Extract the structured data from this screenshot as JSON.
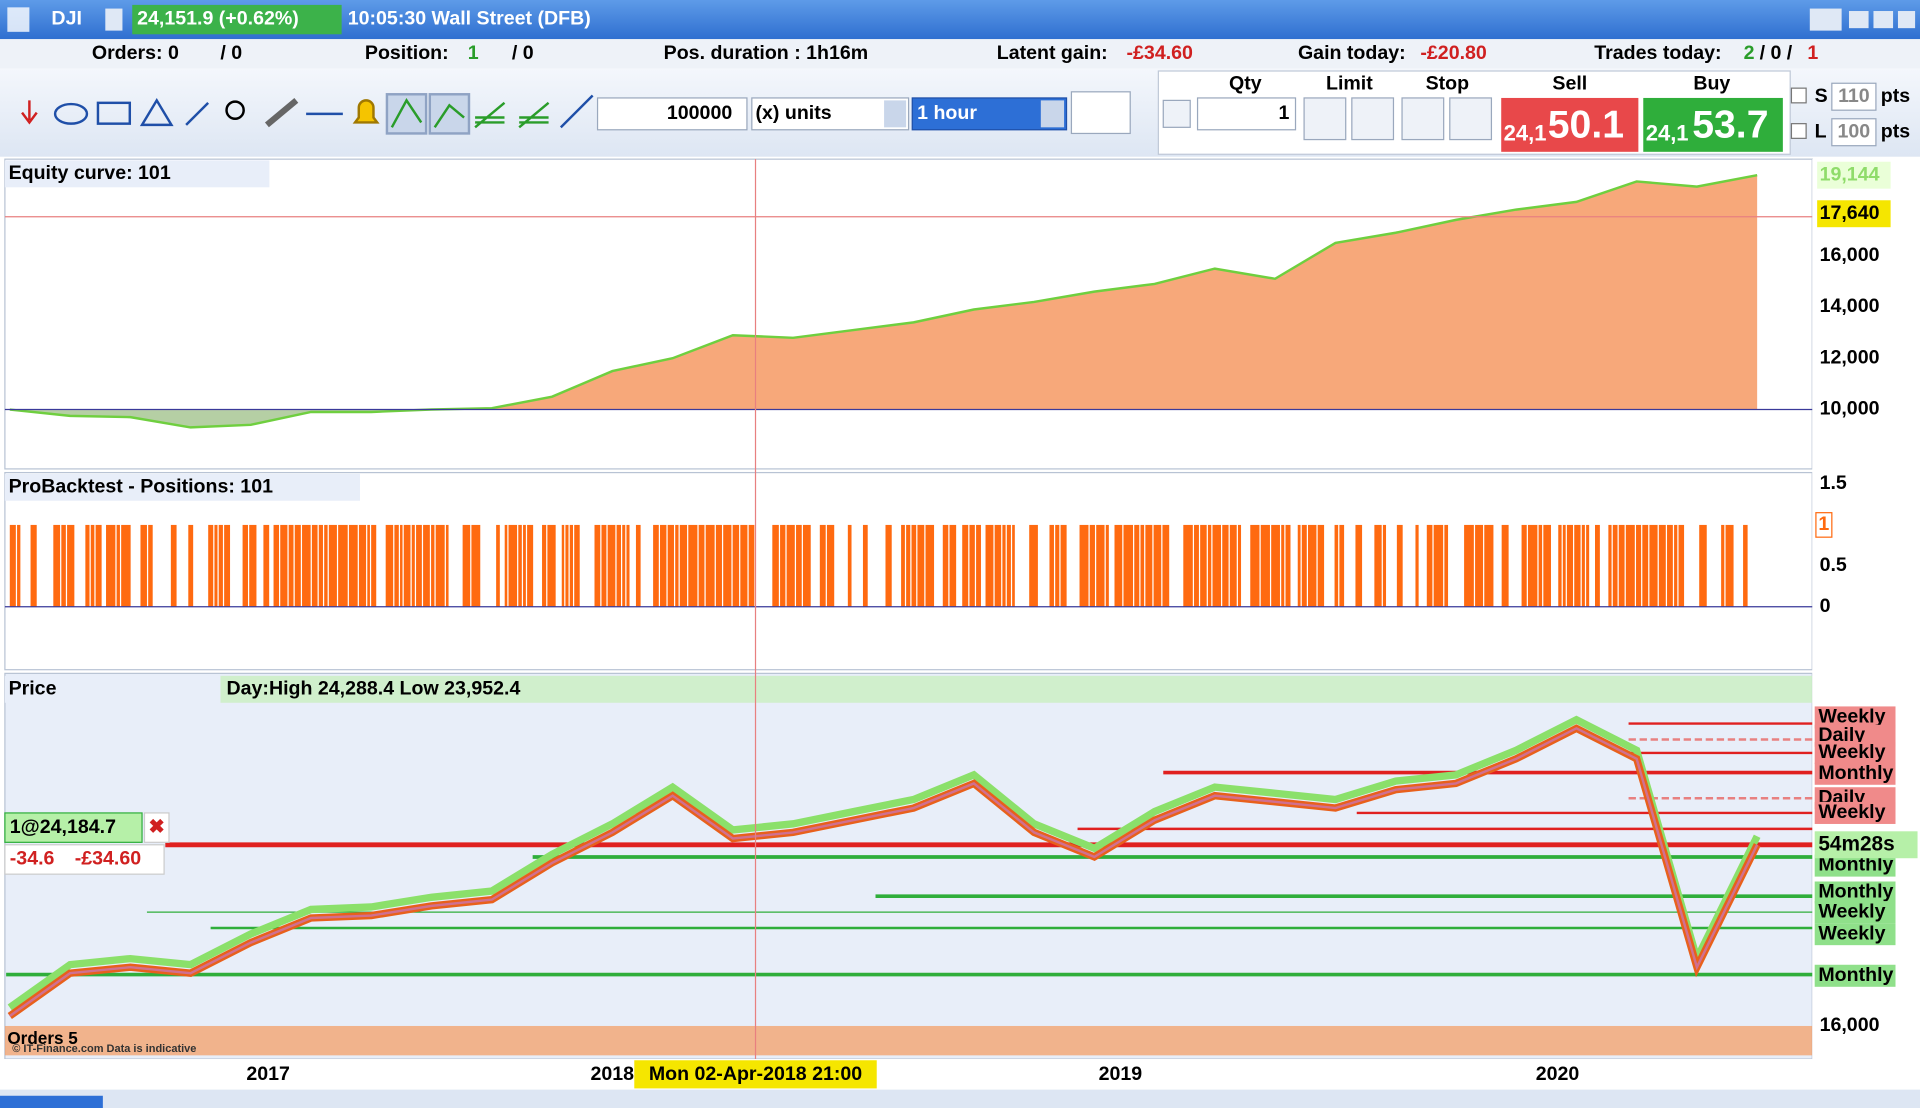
{
  "title_bar": {
    "symbol": "DJI",
    "quote": "24,151.9 (+0.62%)",
    "time_market": "10:05:30 Wall Street (DFB)"
  },
  "status_row": {
    "orders_label": "Orders: 0",
    "orders_rest": "/ 0",
    "position_label": "Position:",
    "position_value": "1",
    "position_rest": "/ 0",
    "duration": "Pos. duration :  1h16m",
    "latent_label": "Latent gain:",
    "latent_value": "-£34.60",
    "gain_label": "Gain today:",
    "gain_value": "-£20.80",
    "trades_label": "Trades today:",
    "trades_a": "2",
    "trades_b": "/ 0 /",
    "trades_c": "1"
  },
  "toolbar": {
    "quantity": "100000",
    "units": "(x) units",
    "timeframe": "1 hour",
    "qty_label": "Qty",
    "qty_value": "1",
    "limit": "Limit",
    "stop": "Stop",
    "sell_label": "Sell",
    "sell_small": "24,1",
    "sell_big": "50.1",
    "buy_label": "Buy",
    "buy_small": "24,1",
    "buy_big": "53.7",
    "s_label": "S",
    "s_value": "110",
    "l_label": "L",
    "l_value": "100",
    "pts": "pts"
  },
  "equity_panel": {
    "title": "Equity curve: 101",
    "ylim": [
      7680,
      19770
    ],
    "yticks": [
      {
        "value": 10000,
        "label": "10,000"
      },
      {
        "value": 12000,
        "label": "12,000"
      },
      {
        "value": 14000,
        "label": "14,000"
      },
      {
        "value": 16000,
        "label": "16,000"
      }
    ],
    "markers": [
      {
        "value": 17640,
        "label": "17,640"
      },
      {
        "value": 19144,
        "label": "19,144"
      }
    ],
    "baseline": 10000,
    "values": [
      10000,
      9750,
      9700,
      9300,
      9400,
      9900,
      9900,
      10000,
      10050,
      10500,
      11500,
      12000,
      12900,
      12800,
      13100,
      13400,
      13900,
      14200,
      14600,
      14900,
      15500,
      15100,
      16500,
      16900,
      17400,
      17800,
      18100,
      18900,
      18700,
      19144
    ]
  },
  "positions_panel": {
    "title": "ProBacktest - Positions: 101",
    "ylim": [
      -0.77,
      1.64
    ],
    "yticks": [
      0,
      0.5,
      1,
      1.5
    ],
    "current": 1
  },
  "price_panel": {
    "title": "Price",
    "day_info": "Day:High 24,288.4 Low 23,952.4",
    "ylim": [
      14500,
      30540
    ],
    "yticks": [
      {
        "value": 16000,
        "label": "16,000"
      }
    ],
    "values": [
      16440,
      18380,
      18650,
      18380,
      19760,
      20870,
      20980,
      21420,
      21700,
      23360,
      24740,
      26400,
      24460,
      24740,
      25290,
      25840,
      26950,
      24740,
      23630,
      25290,
      26400,
      26120,
      25840,
      26670,
      26950,
      28060,
      29440,
      28060,
      18650,
      24180
    ],
    "levels": [
      "Weekly",
      "Daily",
      "Weekly",
      "Monthly",
      "Daily",
      "Weekly",
      "Monthly",
      "Monthly",
      "Weekly",
      "Weekly",
      "Monthly"
    ],
    "timer": "54m28s",
    "position": "1@24,184.7",
    "position_points": "-34.6",
    "position_gain": "-£34.60",
    "orders": "Orders 5",
    "watermark": "© IT-Finance.com  Data is indicative"
  },
  "x_axis": {
    "labels": [
      "2017",
      "2018",
      "2019",
      "2020"
    ],
    "crosshair": "Mon 02-Apr-2018 21:00"
  }
}
